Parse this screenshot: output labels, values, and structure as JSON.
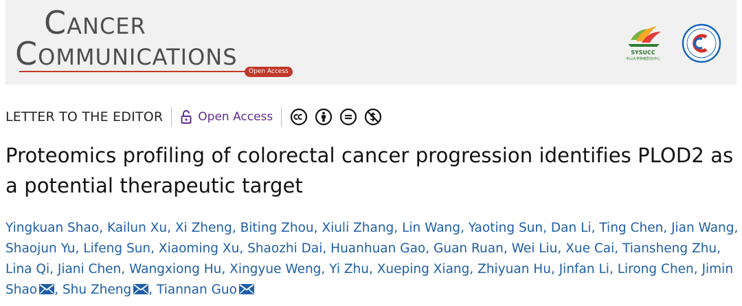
{
  "journal": {
    "name_line1": "CANCER",
    "name_line2": "COMMUNICATIONS",
    "access_tag": "Open Access",
    "partner_logo_text": "SYSUCC",
    "partner_logo_subtext": "中山大学肿瘤防治中心",
    "colors": {
      "mast": "#4d4d4d",
      "tag": "#c0392b",
      "partner_green": "#2e7d32",
      "seal_blue": "#1565c0",
      "seal_red": "#d32f2f"
    }
  },
  "meta": {
    "article_type": "LETTER TO THE EDITOR",
    "open_access_label": "Open Access",
    "license_icons": [
      "cc-icon",
      "by-icon",
      "nd-icon",
      "nc-icon"
    ]
  },
  "article": {
    "title": "Proteomics profiling of colorectal cancer progression identifies PLOD2 as a potential therapeutic target"
  },
  "authors": [
    {
      "name": "Yingkuan Shao",
      "corresponding": false
    },
    {
      "name": "Kailun Xu",
      "corresponding": false
    },
    {
      "name": "Xi Zheng",
      "corresponding": false
    },
    {
      "name": "Biting Zhou",
      "corresponding": false
    },
    {
      "name": "Xiuli Zhang",
      "corresponding": false
    },
    {
      "name": "Lin Wang",
      "corresponding": false
    },
    {
      "name": "Yaoting Sun",
      "corresponding": false
    },
    {
      "name": "Dan Li",
      "corresponding": false
    },
    {
      "name": "Ting Chen",
      "corresponding": false
    },
    {
      "name": "Jian Wang",
      "corresponding": false
    },
    {
      "name": "Shaojun Yu",
      "corresponding": false
    },
    {
      "name": "Lifeng Sun",
      "corresponding": false
    },
    {
      "name": "Xiaoming Xu",
      "corresponding": false
    },
    {
      "name": "Shaozhi Dai",
      "corresponding": false
    },
    {
      "name": "Huanhuan Gao",
      "corresponding": false
    },
    {
      "name": "Guan Ruan",
      "corresponding": false
    },
    {
      "name": "Wei Liu",
      "corresponding": false
    },
    {
      "name": "Xue Cai",
      "corresponding": false
    },
    {
      "name": "Tiansheng Zhu",
      "corresponding": false
    },
    {
      "name": "Lina Qi",
      "corresponding": false
    },
    {
      "name": "Jiani Chen",
      "corresponding": false
    },
    {
      "name": "Wangxiong Hu",
      "corresponding": false
    },
    {
      "name": "Xingyue Weng",
      "corresponding": false
    },
    {
      "name": "Yi Zhu",
      "corresponding": false
    },
    {
      "name": "Xueping Xiang",
      "corresponding": false
    },
    {
      "name": "Zhiyuan Hu",
      "corresponding": false
    },
    {
      "name": "Jinfan Li",
      "corresponding": false
    },
    {
      "name": "Lirong Chen",
      "corresponding": false
    },
    {
      "name": "Jimin Shao",
      "corresponding": true
    },
    {
      "name": "Shu Zheng",
      "corresponding": true
    },
    {
      "name": "Tiannan Guo",
      "corresponding": true
    }
  ],
  "colors": {
    "author_link": "#1e5fa8",
    "open_access": "#5f2d8f",
    "title": "#111111"
  }
}
